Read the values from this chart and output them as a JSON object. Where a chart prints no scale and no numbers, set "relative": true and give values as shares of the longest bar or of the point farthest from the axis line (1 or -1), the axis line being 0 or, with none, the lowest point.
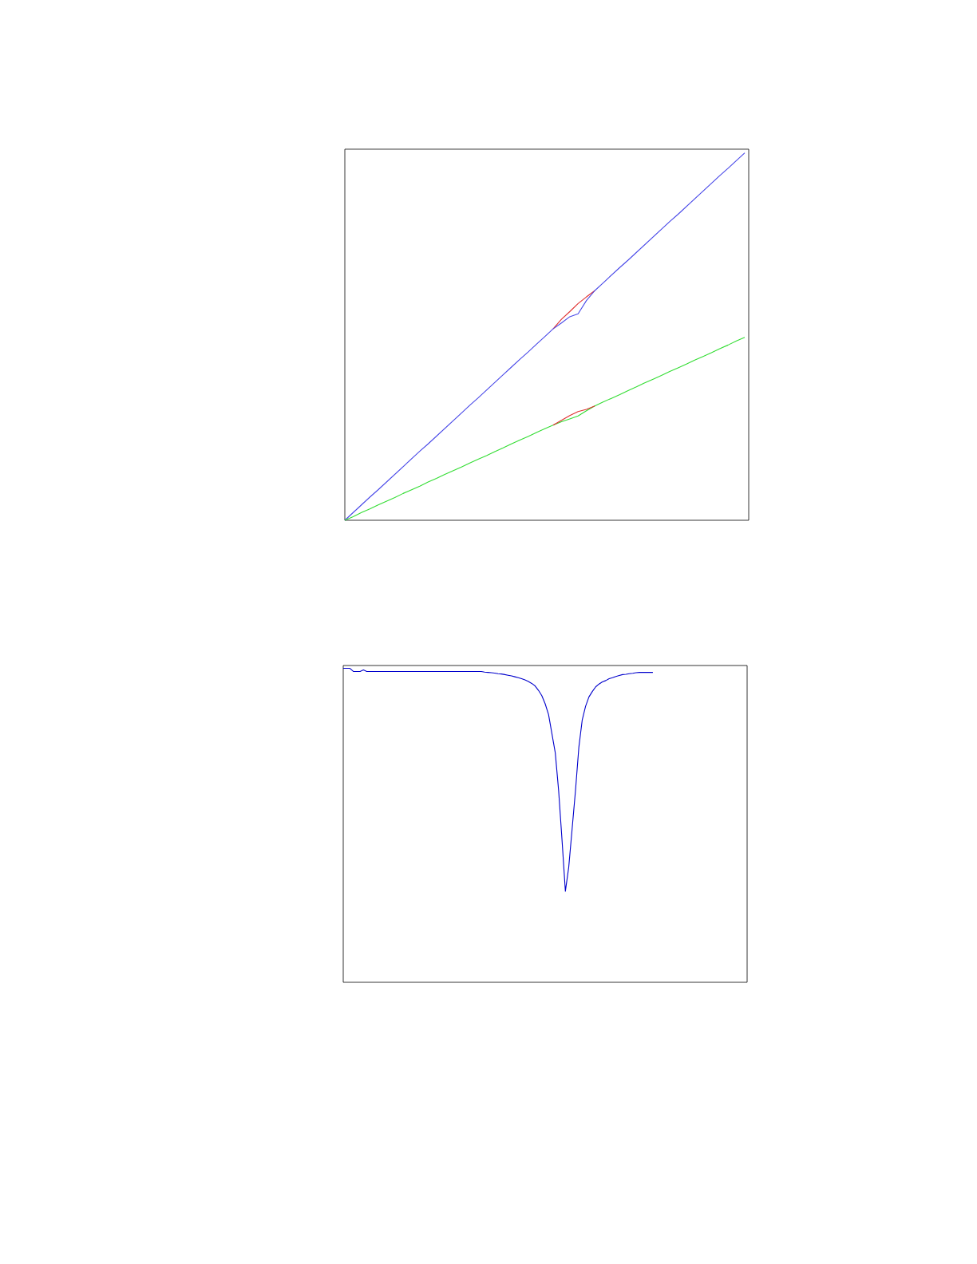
{
  "chart_data": [
    {
      "type": "line",
      "relative": true,
      "categories": [
        null,
        null,
        null,
        null,
        null,
        null,
        null,
        null,
        null,
        null,
        null,
        null,
        null,
        null,
        null,
        null,
        null,
        null,
        null,
        null,
        null,
        null,
        null,
        null,
        null,
        null,
        null,
        null,
        null,
        null,
        null,
        null,
        null,
        null,
        null,
        null,
        null,
        null,
        null,
        null,
        null,
        null,
        null,
        null,
        null,
        null,
        null,
        null,
        null
      ],
      "series": [
        {
          "color": "#e03030",
          "values": [
            null,
            null,
            null,
            null,
            null,
            null,
            null,
            null,
            null,
            null,
            null,
            null,
            null,
            null,
            null,
            null,
            null,
            null,
            null,
            null,
            null,
            null,
            null,
            null,
            null,
            0.521,
            0.547,
            0.568,
            0.59,
            0.608,
            0.625,
            null,
            null,
            null,
            null,
            null,
            null,
            null,
            null,
            null,
            null,
            null,
            null,
            null,
            null,
            null,
            null,
            null,
            null
          ]
        },
        {
          "color": "#4848e8",
          "values": [
            0,
            0.021,
            0.042,
            0.063,
            0.083,
            0.104,
            0.125,
            0.146,
            0.167,
            0.188,
            0.208,
            0.229,
            0.25,
            0.271,
            0.292,
            0.313,
            0.333,
            0.354,
            0.375,
            0.396,
            0.417,
            0.438,
            0.458,
            0.479,
            0.5,
            0.521,
            0.537,
            0.554,
            0.562,
            0.598,
            0.625,
            0.646,
            0.667,
            0.688,
            0.708,
            0.729,
            0.75,
            0.771,
            0.792,
            0.813,
            0.833,
            0.854,
            0.875,
            0.896,
            0.917,
            0.938,
            0.958,
            0.979,
            1.0
          ]
        },
        {
          "color": "#33dd33",
          "values": [
            0,
            0.01,
            0.021,
            0.031,
            0.042,
            0.052,
            0.062,
            0.073,
            0.083,
            0.093,
            0.104,
            0.114,
            0.125,
            0.135,
            0.145,
            0.156,
            0.166,
            0.176,
            0.187,
            0.197,
            0.208,
            0.218,
            0.228,
            0.239,
            0.249,
            0.259,
            0.268,
            0.276,
            0.284,
            0.298,
            0.311,
            0.322,
            0.332,
            0.342,
            0.353,
            0.363,
            0.374,
            0.384,
            0.394,
            0.405,
            0.415,
            0.425,
            0.436,
            0.446,
            0.456,
            0.467,
            0.477,
            0.488,
            0.498
          ]
        },
        {
          "color": "#e03030",
          "values": [
            null,
            null,
            null,
            null,
            null,
            null,
            null,
            null,
            null,
            null,
            null,
            null,
            null,
            null,
            null,
            null,
            null,
            null,
            null,
            null,
            null,
            null,
            null,
            null,
            null,
            0.259,
            0.272,
            0.285,
            0.296,
            0.302,
            0.311,
            null,
            null,
            null,
            null,
            null,
            null,
            null,
            null,
            null,
            null,
            null,
            null,
            null,
            null,
            null,
            null,
            null,
            null
          ]
        }
      ]
    },
    {
      "type": "line",
      "relative": true,
      "categories": [
        null,
        null,
        null,
        null,
        null,
        null,
        null,
        null,
        null,
        null,
        null,
        null,
        null,
        null,
        null,
        null,
        null,
        null,
        null,
        null,
        null,
        null,
        null,
        null,
        null,
        null,
        null,
        null,
        null,
        null,
        null,
        null,
        null,
        null,
        null,
        null,
        null,
        null,
        null,
        null,
        null,
        null,
        null,
        null,
        null,
        null,
        null,
        null,
        null,
        null,
        null,
        null,
        null,
        null,
        null,
        null,
        null,
        null,
        null,
        null,
        null,
        null,
        null,
        null,
        null,
        null,
        null,
        null,
        null,
        null,
        null,
        null,
        null,
        null,
        null,
        null,
        null,
        null,
        null,
        null,
        null,
        null,
        null,
        null,
        null,
        null,
        null,
        null,
        null,
        null,
        null,
        null,
        null,
        null,
        null,
        null,
        null,
        null,
        null,
        null,
        null,
        null,
        null,
        null,
        null,
        null,
        null,
        null,
        null,
        null,
        null,
        null,
        null,
        null,
        null,
        null,
        null,
        null,
        null,
        null,
        null
      ],
      "series": [
        {
          "color": "#0000cc",
          "values": [
            1.0,
            1.0,
            1.0,
            0.99,
            0.99,
            0.99,
            0.995,
            0.99,
            0.99,
            0.99,
            0.99,
            0.99,
            0.99,
            0.99,
            0.99,
            0.99,
            0.99,
            0.99,
            0.99,
            0.99,
            0.99,
            0.99,
            0.99,
            0.99,
            0.99,
            0.99,
            0.99,
            0.99,
            0.99,
            0.99,
            0.99,
            0.99,
            0.99,
            0.99,
            0.99,
            0.99,
            0.99,
            0.99,
            0.99,
            0.99,
            0.99,
            0.99,
            0.988,
            0.987,
            0.986,
            0.985,
            0.983,
            0.982,
            0.98,
            0.978,
            0.976,
            0.973,
            0.97,
            0.967,
            0.963,
            0.958,
            0.952,
            0.944,
            0.93,
            0.913,
            0.887,
            0.853,
            0.792,
            0.731,
            0.61,
            0.454,
            0.29,
            0.367,
            0.488,
            0.61,
            0.748,
            0.835,
            0.879,
            0.909,
            0.926,
            0.941,
            0.95,
            0.957,
            0.961,
            0.967,
            0.97,
            0.974,
            0.977,
            0.98,
            0.981,
            0.983,
            0.984,
            0.986,
            0.987,
            0.987,
            0.987,
            0.987,
            0.987,
            null,
            null,
            null,
            null,
            null,
            null,
            null,
            null,
            null,
            null,
            null,
            null,
            null,
            null,
            null,
            null,
            null,
            null,
            null,
            null,
            null,
            null,
            null,
            null,
            null,
            null,
            null,
            null
          ]
        }
      ]
    }
  ]
}
